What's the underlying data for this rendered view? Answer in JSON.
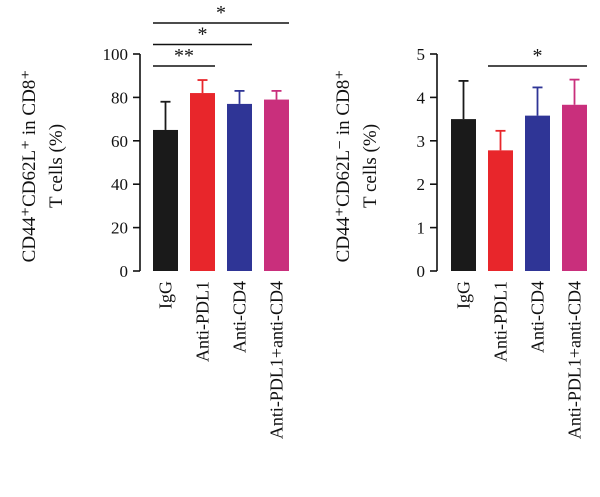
{
  "chart_data": [
    {
      "type": "bar",
      "ylabel_line1": "CD44⁺CD62L⁺ in CD8⁺",
      "ylabel_line2": "T cells (%)",
      "categories": [
        "IgG",
        "Anti-PDL1",
        "Anti-CD4",
        "Anti-PDL1+anti-CD4"
      ],
      "values": [
        65,
        82,
        77,
        79
      ],
      "errors": [
        13,
        6,
        6,
        4
      ],
      "ylim": [
        0,
        100
      ],
      "yticks": [
        0,
        20,
        40,
        60,
        80,
        100
      ],
      "colors": [
        "#1a1a1a",
        "#e8262b",
        "#2f3596",
        "#c92f7c"
      ],
      "significance": [
        {
          "from": 0,
          "to": 1,
          "label": "**"
        },
        {
          "from": 0,
          "to": 2,
          "label": "*"
        },
        {
          "from": 0,
          "to": 3,
          "label": "*"
        }
      ]
    },
    {
      "type": "bar",
      "ylabel_line1": "CD44⁺CD62L⁻ in CD8⁺",
      "ylabel_line2": "T cells (%)",
      "categories": [
        "IgG",
        "Anti-PDL1",
        "Anti-CD4",
        "Anti-PDL1+anti-CD4"
      ],
      "values": [
        3.5,
        2.78,
        3.58,
        3.83
      ],
      "errors": [
        0.88,
        0.45,
        0.65,
        0.58
      ],
      "ylim": [
        0,
        5
      ],
      "yticks": [
        0,
        1,
        2,
        3,
        4,
        5
      ],
      "colors": [
        "#1a1a1a",
        "#e8262b",
        "#2f3596",
        "#c92f7c"
      ],
      "significance": [
        {
          "from": 1,
          "to": 3,
          "label": "*"
        }
      ]
    }
  ]
}
